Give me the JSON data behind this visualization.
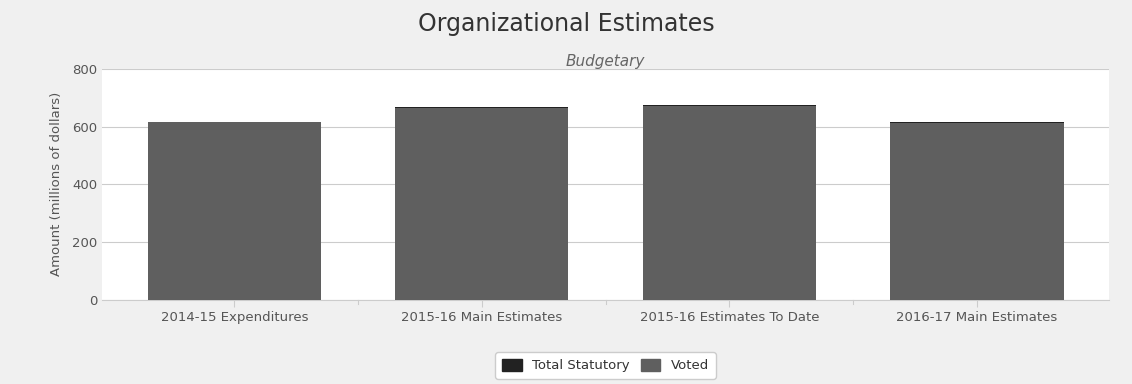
{
  "title": "Organizational Estimates",
  "subtitle": "Budgetary",
  "categories": [
    "2014-15 Expenditures",
    "2015-16 Main Estimates",
    "2015-16 Estimates To Date",
    "2016-17 Main Estimates"
  ],
  "voted_values": [
    615,
    665,
    672,
    614
  ],
  "statutory_values": [
    2,
    2,
    2,
    2
  ],
  "bar_color_voted": "#5f5f5f",
  "bar_color_statutory": "#222222",
  "ylabel": "Amount (millions of dollars)",
  "ylim": [
    0,
    800
  ],
  "yticks": [
    0,
    200,
    400,
    600,
    800
  ],
  "background_color": "#f0f0f0",
  "plot_background": "#ffffff",
  "grid_color": "#cccccc",
  "title_fontsize": 17,
  "subtitle_fontsize": 11,
  "label_fontsize": 9.5,
  "tick_fontsize": 9.5,
  "legend_labels": [
    "Total Statutory",
    "Voted"
  ],
  "legend_colors": [
    "#222222",
    "#5f5f5f"
  ]
}
